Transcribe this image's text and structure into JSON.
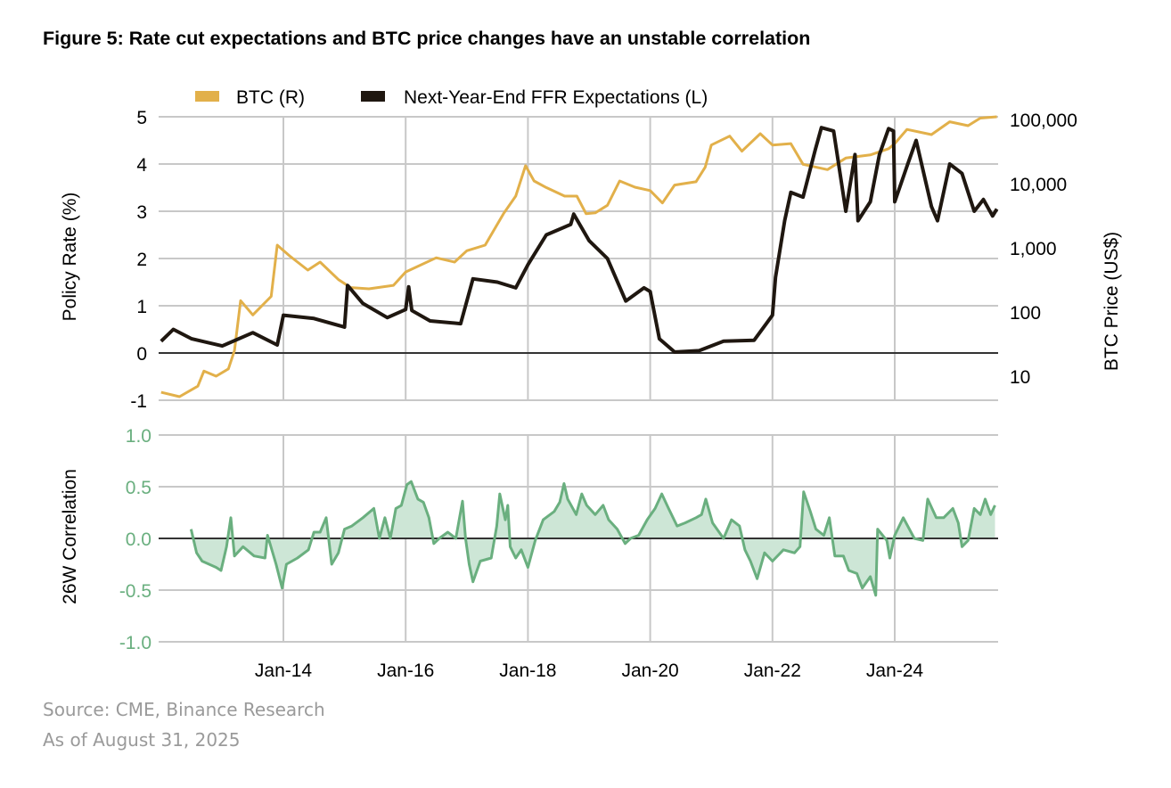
{
  "title": "Figure 5: Rate cut expectations and BTC price changes have an unstable correlation",
  "footer": {
    "source": "Source: CME, Binance Research",
    "as_of": "As of August 31, 2025"
  },
  "colors": {
    "btc": "#E2B04A",
    "ffr": "#1F1710",
    "correlation": "#6AAF7F",
    "correlation_fill": "#CDE6D6",
    "grid": "#c8c8c8"
  },
  "chart_data": [
    {
      "type": "line",
      "legend": {
        "position": "top",
        "entries": [
          "BTC (R)",
          "Next-Year-End FFR Expectations (L)"
        ]
      },
      "ylabel": "Policy Rate (%)",
      "ylabel_right": "BTC Price (US$)",
      "ylim": [
        -1,
        5
      ],
      "ylim_right": [
        5,
        100000
      ],
      "right_axis_scale": "log",
      "yticks": [
        "5",
        "4",
        "3",
        "2",
        "1",
        "0",
        "-1"
      ],
      "yticks_right": [
        "100,000",
        "10,000",
        "1,000",
        "100",
        "10"
      ],
      "grid": true,
      "series": [
        {
          "name": "BTC (R)",
          "axis": "right",
          "x": [
            "2012.0",
            "2012.3",
            "2012.6",
            "2012.7",
            "2012.9",
            "2013.1",
            "2013.2",
            "2013.3",
            "2013.5",
            "2013.8",
            "2013.9",
            "2014.1",
            "2014.4",
            "2014.6",
            "2014.9",
            "2015.1",
            "2015.4",
            "2015.8",
            "2016.0",
            "2016.5",
            "2016.8",
            "2017.0",
            "2017.3",
            "2017.6",
            "2017.8",
            "2017.96",
            "2018.1",
            "2018.3",
            "2018.6",
            "2018.8",
            "2018.95",
            "2019.1",
            "2019.3",
            "2019.5",
            "2019.75",
            "2020.0",
            "2020.2",
            "2020.4",
            "2020.75",
            "2020.9",
            "2021.0",
            "2021.3",
            "2021.5",
            "2021.8",
            "2022.0",
            "2022.3",
            "2022.5",
            "2022.9",
            "2023.2",
            "2023.6",
            "2023.9",
            "2024.0",
            "2024.2",
            "2024.6",
            "2024.9",
            "2025.2",
            "2025.4",
            "2025.67"
          ],
          "values": [
            5.6,
            4.8,
            7,
            12,
            10,
            13,
            25,
            150,
            90,
            175,
            1100,
            750,
            450,
            600,
            320,
            240,
            230,
            260,
            420,
            700,
            600,
            900,
            1100,
            3400,
            6400,
            19000,
            11000,
            8700,
            6400,
            6400,
            3400,
            3500,
            4600,
            11000,
            8800,
            7800,
            5000,
            9500,
            10700,
            18000,
            40000,
            55000,
            32000,
            60000,
            40000,
            42000,
            20000,
            16500,
            25000,
            28000,
            35000,
            42000,
            70000,
            58000,
            92000,
            80000,
            105000,
            110000
          ]
        },
        {
          "name": "Next-Year-End FFR Expectations (L)",
          "axis": "left",
          "x": [
            "2012.0",
            "2012.2",
            "2012.5",
            "2013.0",
            "2013.5",
            "2013.9",
            "2014.0",
            "2014.5",
            "2015.0",
            "2015.05",
            "2015.3",
            "2015.7",
            "2016.0",
            "2016.05",
            "2016.1",
            "2016.4",
            "2016.9",
            "2017.1",
            "2017.5",
            "2017.8",
            "2018.0",
            "2018.3",
            "2018.7",
            "2018.75",
            "2019.0",
            "2019.3",
            "2019.6",
            "2019.9",
            "2020.0",
            "2020.15",
            "2020.4",
            "2020.8",
            "2021.2",
            "2021.7",
            "2021.9",
            "2022.0",
            "2022.05",
            "2022.2",
            "2022.3",
            "2022.5",
            "2022.7",
            "2022.8",
            "2023.0",
            "2023.2",
            "2023.35",
            "2023.4",
            "2023.6",
            "2023.75",
            "2023.9",
            "2023.98",
            "2024.0",
            "2024.2",
            "2024.35",
            "2024.6",
            "2024.7",
            "2024.9",
            "2025.1",
            "2025.3",
            "2025.45",
            "2025.6",
            "2025.67"
          ],
          "values": [
            0.25,
            0.5,
            0.3,
            0.15,
            0.43,
            0.17,
            0.8,
            0.73,
            0.55,
            1.43,
            1.05,
            0.75,
            0.92,
            1.4,
            0.9,
            0.68,
            0.62,
            1.57,
            1.5,
            1.38,
            1.87,
            2.5,
            2.72,
            2.94,
            2.38,
            2.0,
            1.1,
            1.38,
            1.3,
            0.3,
            0.02,
            0.05,
            0.25,
            0.27,
            0.62,
            0.8,
            1.6,
            2.8,
            3.4,
            3.3,
            4.3,
            4.77,
            4.7,
            3.0,
            4.2,
            2.8,
            3.2,
            4.2,
            4.75,
            4.7,
            3.2,
            3.95,
            4.5,
            3.1,
            2.8,
            4.0,
            3.8,
            3.0,
            3.25,
            2.9,
            3.05
          ]
        }
      ]
    },
    {
      "type": "area",
      "ylabel": "26W Correlation",
      "ylim": [
        -1.0,
        1.0
      ],
      "yticks": [
        "1.0",
        "0.5",
        "0.0",
        "-0.5",
        "-1.0"
      ],
      "xticks": [
        "Jan-14",
        "Jan-16",
        "Jan-18",
        "Jan-20",
        "Jan-22",
        "Jan-24"
      ],
      "grid": true,
      "series": [
        {
          "x": [
            "2012.49",
            "2012.58",
            "2012.67",
            "2012.9",
            "2012.98",
            "2013.07",
            "2013.14",
            "2013.2",
            "2013.34",
            "2013.52",
            "2013.7",
            "2013.74",
            "2013.88",
            "2013.98",
            "2014.05",
            "2014.23",
            "2014.41",
            "2014.5",
            "2014.6",
            "2014.7",
            "2014.79",
            "2014.9",
            "2015.0",
            "2015.12",
            "2015.3",
            "2015.48",
            "2015.57",
            "2015.66",
            "2015.75",
            "2015.84",
            "2015.93",
            "2016.02",
            "2016.09",
            "2016.2",
            "2016.29",
            "2016.38",
            "2016.46",
            "2016.55",
            "2016.69",
            "2016.82",
            "2016.93",
            "2016.98",
            "2017.04",
            "2017.1",
            "2017.22",
            "2017.4",
            "2017.49",
            "2017.54",
            "2017.63",
            "2017.67",
            "2017.71",
            "2017.8",
            "2017.89",
            "2018.0",
            "2018.12",
            "2018.25",
            "2018.43",
            "2018.52",
            "2018.59",
            "2018.65",
            "2018.79",
            "2018.88",
            "2018.96",
            "2019.1",
            "2019.23",
            "2019.32",
            "2019.46",
            "2019.59",
            "2019.68",
            "2019.81",
            "2019.95",
            "2020.08",
            "2020.19",
            "2020.3",
            "2020.44",
            "2020.57",
            "2020.75",
            "2020.84",
            "2020.91",
            "2021.02",
            "2021.2",
            "2021.33",
            "2021.46",
            "2021.55",
            "2021.64",
            "2021.75",
            "2021.87",
            "2022.0",
            "2022.18",
            "2022.36",
            "2022.45",
            "2022.51",
            "2022.62",
            "2022.71",
            "2022.84",
            "2022.93",
            "2023.02",
            "2023.16",
            "2023.25",
            "2023.38",
            "2023.47",
            "2023.6",
            "2023.69",
            "2023.72",
            "2023.87",
            "2023.92",
            "2024.0",
            "2024.14",
            "2024.32",
            "2024.46",
            "2024.54",
            "2024.68",
            "2024.8",
            "2024.95",
            "2025.04",
            "2025.1",
            "2025.2",
            "2025.3",
            "2025.4",
            "2025.48",
            "2025.57",
            "2025.64"
          ],
          "values": [
            0.09,
            -0.14,
            -0.22,
            -0.28,
            -0.31,
            -0.08,
            0.2,
            -0.17,
            -0.08,
            -0.17,
            -0.19,
            0.03,
            -0.25,
            -0.48,
            -0.25,
            -0.19,
            -0.11,
            0.06,
            0.06,
            0.2,
            -0.25,
            -0.14,
            0.09,
            0.12,
            0.2,
            0.29,
            0.0,
            0.2,
            0.0,
            0.29,
            0.32,
            0.52,
            0.55,
            0.38,
            0.35,
            0.2,
            -0.05,
            0.0,
            0.06,
            0.0,
            0.36,
            0.0,
            -0.25,
            -0.42,
            -0.22,
            -0.19,
            0.12,
            0.43,
            0.18,
            0.32,
            -0.08,
            -0.19,
            -0.11,
            -0.28,
            -0.02,
            0.18,
            0.26,
            0.35,
            0.53,
            0.38,
            0.23,
            0.43,
            0.32,
            0.23,
            0.32,
            0.18,
            0.09,
            -0.05,
            0.0,
            0.03,
            0.18,
            0.29,
            0.43,
            0.29,
            0.12,
            0.15,
            0.2,
            0.23,
            0.38,
            0.15,
            0.0,
            0.18,
            0.12,
            -0.11,
            -0.22,
            -0.39,
            -0.14,
            -0.22,
            -0.11,
            -0.14,
            -0.08,
            0.45,
            0.26,
            0.09,
            0.03,
            0.2,
            -0.17,
            -0.17,
            -0.31,
            -0.34,
            -0.48,
            -0.37,
            -0.55,
            0.09,
            -0.02,
            -0.19,
            0.03,
            0.2,
            0.0,
            -0.02,
            0.38,
            0.2,
            0.2,
            0.29,
            0.15,
            -0.08,
            -0.02,
            0.29,
            0.23,
            0.38,
            0.23,
            0.32
          ]
        }
      ]
    }
  ]
}
